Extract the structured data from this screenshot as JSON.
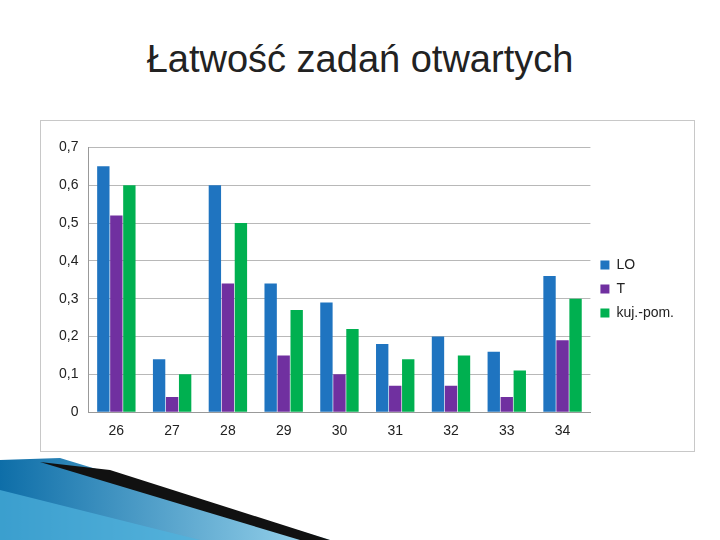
{
  "chart_data": {
    "type": "bar",
    "title": "Łatwość zadań otwartych",
    "categories": [
      "26",
      "27",
      "28",
      "29",
      "30",
      "31",
      "32",
      "33",
      "34"
    ],
    "series": [
      {
        "name": "LO",
        "color": "#1f74c0",
        "values": [
          0.65,
          0.14,
          0.6,
          0.34,
          0.29,
          0.18,
          0.2,
          0.16,
          0.36
        ]
      },
      {
        "name": "T",
        "color": "#7030a0",
        "values": [
          0.52,
          0.04,
          0.34,
          0.15,
          0.1,
          0.07,
          0.07,
          0.04,
          0.19
        ]
      },
      {
        "name": "kuj.-pom.",
        "color": "#00b050",
        "values": [
          0.6,
          0.1,
          0.5,
          0.27,
          0.22,
          0.14,
          0.15,
          0.11,
          0.3
        ]
      }
    ],
    "ylim": [
      0,
      0.7
    ],
    "yticks": [
      0,
      {
        "value": 0.1,
        "label": "0,1"
      },
      {
        "value": 0.2,
        "label": "0,2"
      },
      {
        "value": 0.3,
        "label": "0,3"
      },
      {
        "value": 0.4,
        "label": "0,4"
      },
      {
        "value": 0.5,
        "label": "0,5"
      },
      {
        "value": 0.6,
        "label": "0,6"
      },
      {
        "value": 0.7,
        "label": "0,7"
      }
    ],
    "grid": true,
    "legend": "right"
  }
}
